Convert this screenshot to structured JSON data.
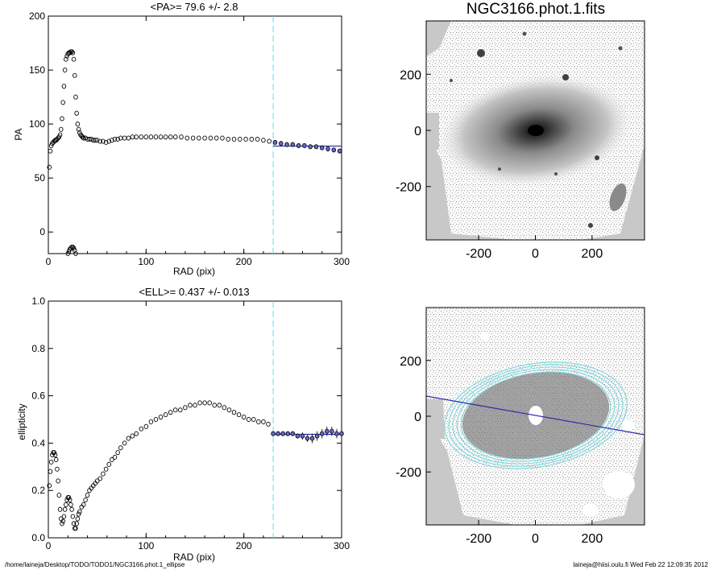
{
  "footer": {
    "path": "/home/laineja/Desktop/TODO/TODO1/NGC3166.phot.1_ellipse",
    "user_stamp": "laineja@hiisi.oulu.fi  Wed Feb 22 12:09:35 2012"
  },
  "colors": {
    "fit_line": "#2a2ab0",
    "cut_line": "#5fe0e8",
    "markers": "#000000",
    "image_bg": "#c8c8c8"
  },
  "images": [
    {
      "title": "NGC3166.phot.1.fits",
      "xticks": [
        "-200",
        "0",
        "200"
      ],
      "yticks": [
        "200",
        "0",
        "-200"
      ],
      "xlim": [
        -385,
        385
      ],
      "ylim": [
        -390,
        390
      ],
      "content": "galaxy-image"
    },
    {
      "title": "",
      "xticks": [
        "-200",
        "0",
        "200"
      ],
      "yticks": [
        "200",
        "0",
        "-200"
      ],
      "xlim": [
        -385,
        385
      ],
      "ylim": [
        -390,
        390
      ],
      "content": "ellipse-contour-overlay"
    }
  ],
  "chart_data": [
    {
      "type": "scatter",
      "title": "<PA>=  79.6 +/-   2.8",
      "xlabel": "RAD (pix)",
      "ylabel": "PA",
      "xlim": [
        0,
        300
      ],
      "ylim": [
        -20,
        200
      ],
      "xticks": [
        0,
        100,
        200,
        300
      ],
      "yticks": [
        0,
        50,
        100,
        150,
        200
      ],
      "cutoff_x": 230,
      "fit": {
        "x": [
          230,
          300
        ],
        "y": 79.6
      },
      "series": [
        {
          "x": [
            1,
            2,
            3,
            4,
            5,
            6,
            7,
            8,
            9,
            10,
            11,
            12,
            13,
            14,
            15,
            16,
            17,
            18,
            19,
            20,
            21,
            22,
            23,
            24,
            25,
            26,
            27,
            28,
            29,
            30,
            31,
            32,
            33,
            34,
            35,
            36,
            38,
            40,
            42,
            44,
            46,
            48,
            50,
            53,
            56,
            59,
            62,
            65,
            68,
            71,
            74,
            78,
            82,
            86,
            90,
            95,
            100,
            105,
            110,
            115,
            120,
            125,
            130,
            136,
            142,
            148,
            154,
            160,
            166,
            172,
            178,
            184,
            190,
            196,
            202,
            208,
            214,
            220,
            226,
            232,
            238,
            244,
            250,
            256,
            262,
            268,
            274,
            280,
            286,
            292,
            298
          ],
          "y": [
            60,
            75,
            80,
            82,
            83,
            84,
            85,
            85,
            86,
            87,
            88,
            90,
            95,
            105,
            120,
            135,
            150,
            160,
            163,
            165,
            166,
            166,
            167,
            167,
            166,
            160,
            145,
            125,
            110,
            100,
            95,
            92,
            90,
            89,
            88,
            87,
            87,
            86,
            86,
            86,
            85,
            85,
            85,
            84,
            84,
            83,
            84,
            85,
            86,
            86,
            87,
            87,
            87,
            88,
            88,
            88,
            88,
            88,
            88,
            88,
            88,
            88,
            88,
            88,
            87,
            87,
            87,
            87,
            87,
            87,
            87,
            86,
            86,
            86,
            86,
            86,
            86,
            85,
            84,
            83,
            82,
            81,
            81,
            80,
            80,
            79,
            79,
            78,
            77,
            76,
            75
          ]
        },
        {
          "x": [
            20,
            21,
            22,
            23,
            24,
            25,
            26,
            27,
            28
          ],
          "y": [
            -20,
            -18,
            -16,
            -15,
            -14,
            -14,
            -15,
            -17,
            -20
          ]
        }
      ]
    },
    {
      "type": "scatter",
      "title": "<ELL>= 0.437 +/-  0.013",
      "xlabel": "RAD (pix)",
      "ylabel": "ellipticity",
      "xlim": [
        0,
        300
      ],
      "ylim": [
        0,
        1
      ],
      "xticks": [
        0,
        100,
        200,
        300
      ],
      "yticks": [
        "0.0",
        "0.2",
        "0.4",
        "0.6",
        "0.8",
        "1.0"
      ],
      "cutoff_x": 230,
      "fit": {
        "x": [
          230,
          300
        ],
        "y": 0.437
      },
      "series": [
        {
          "x": [
            1,
            2,
            3,
            4,
            5,
            6,
            7,
            8,
            9,
            10,
            11,
            12,
            13,
            14,
            15,
            16,
            17,
            18,
            19,
            20,
            21,
            22,
            23,
            24,
            25,
            26,
            27,
            28,
            29,
            30,
            31,
            32,
            34,
            36,
            38,
            40,
            42,
            44,
            46,
            48,
            50,
            53,
            56,
            59,
            62,
            65,
            68,
            71,
            74,
            78,
            82,
            86,
            90,
            95,
            100,
            105,
            110,
            115,
            120,
            125,
            130,
            135,
            140,
            145,
            150,
            155,
            160,
            165,
            170,
            175,
            180,
            185,
            190,
            195,
            200,
            205,
            210,
            215,
            220,
            225,
            230,
            235,
            240,
            245,
            250,
            255,
            260,
            265,
            270,
            275,
            280,
            285,
            290,
            295,
            300
          ],
          "y": [
            0.22,
            0.28,
            0.32,
            0.35,
            0.36,
            0.36,
            0.35,
            0.33,
            0.29,
            0.24,
            0.18,
            0.12,
            0.08,
            0.06,
            0.07,
            0.09,
            0.12,
            0.14,
            0.16,
            0.17,
            0.17,
            0.16,
            0.14,
            0.12,
            0.09,
            0.06,
            0.04,
            0.04,
            0.06,
            0.08,
            0.1,
            0.11,
            0.13,
            0.14,
            0.16,
            0.18,
            0.2,
            0.21,
            0.22,
            0.23,
            0.24,
            0.25,
            0.27,
            0.29,
            0.31,
            0.33,
            0.34,
            0.36,
            0.38,
            0.4,
            0.42,
            0.43,
            0.44,
            0.46,
            0.47,
            0.49,
            0.5,
            0.51,
            0.52,
            0.53,
            0.54,
            0.54,
            0.55,
            0.56,
            0.56,
            0.57,
            0.57,
            0.57,
            0.56,
            0.56,
            0.55,
            0.54,
            0.53,
            0.52,
            0.51,
            0.5,
            0.5,
            0.49,
            0.49,
            0.48,
            0.44,
            0.44,
            0.44,
            0.44,
            0.44,
            0.43,
            0.43,
            0.42,
            0.42,
            0.43,
            0.44,
            0.45,
            0.45,
            0.44,
            0.44
          ],
          "err": [
            0,
            0,
            0,
            0,
            0,
            0,
            0,
            0,
            0,
            0,
            0,
            0,
            0,
            0,
            0,
            0,
            0,
            0,
            0,
            0,
            0,
            0,
            0,
            0,
            0,
            0,
            0,
            0,
            0,
            0,
            0,
            0,
            0,
            0,
            0,
            0,
            0,
            0,
            0,
            0,
            0,
            0,
            0,
            0,
            0,
            0,
            0,
            0,
            0,
            0,
            0,
            0,
            0,
            0,
            0,
            0,
            0,
            0,
            0,
            0,
            0,
            0,
            0,
            0,
            0,
            0,
            0,
            0,
            0,
            0,
            0,
            0,
            0,
            0,
            0,
            0,
            0,
            0,
            0,
            0,
            0.01,
            0.01,
            0.01,
            0.01,
            0.01,
            0.01,
            0.015,
            0.015,
            0.02,
            0.02,
            0.02,
            0.02,
            0.02,
            0.02,
            0.02
          ]
        }
      ]
    }
  ]
}
